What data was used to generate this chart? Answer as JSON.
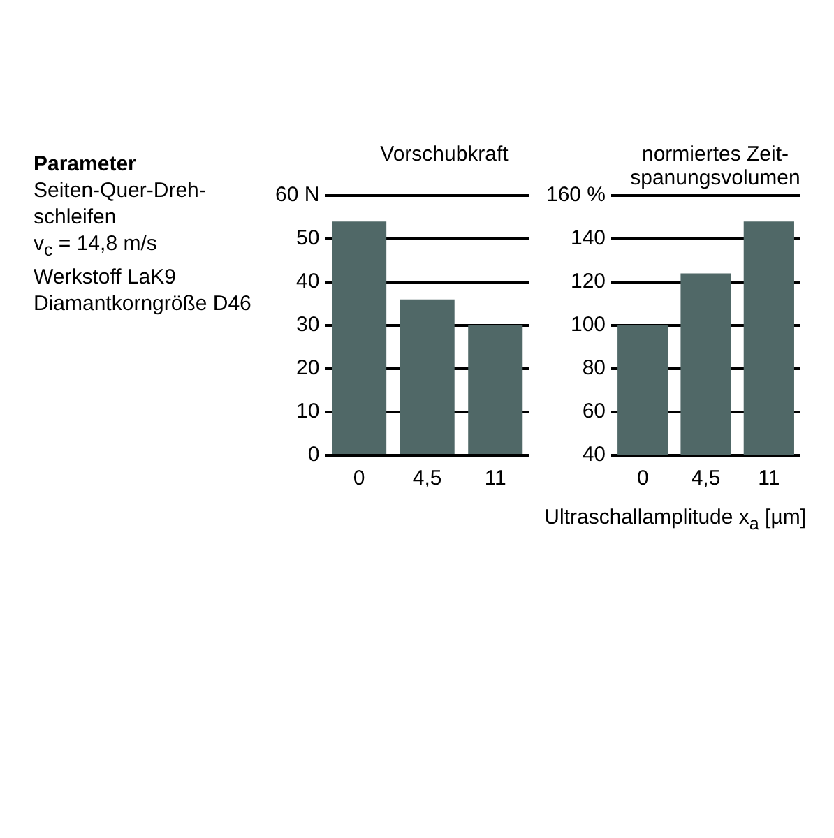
{
  "chart_data": [
    {
      "type": "other",
      "title": "Parameter",
      "annotations": [
        "Seiten-Quer-Dreh-schleifen",
        "v$_{c}$ =  14,8 m/s",
        "Werkstoff LaK9",
        "Diamantkorngröße D46"
      ]
    },
    {
      "type": "bar",
      "title": "Vorschubkraft",
      "categories": [
        "0",
        "4,5",
        "11"
      ],
      "values": [
        54,
        36,
        30
      ],
      "color": "#506867",
      "ylim": [
        0,
        60
      ],
      "yticks": [
        0,
        10,
        20,
        30,
        40,
        50,
        {
          "value": 60,
          "label": "60 N"
        }
      ],
      "grid": "y",
      "legend": false
    },
    {
      "type": "bar",
      "title": "normiertes Zeit-spanungsvolumen",
      "xlabel": "Ultraschallamplitude x$_{a}$ [µm]",
      "categories": [
        "0",
        "4,5",
        "11"
      ],
      "values": [
        100,
        124,
        148
      ],
      "color": "#506867",
      "ylim": [
        40,
        160
      ],
      "yticks": [
        40,
        60,
        80,
        100,
        120,
        140,
        {
          "value": 160,
          "label": "160 %"
        }
      ],
      "grid": "y",
      "legend": false
    }
  ]
}
